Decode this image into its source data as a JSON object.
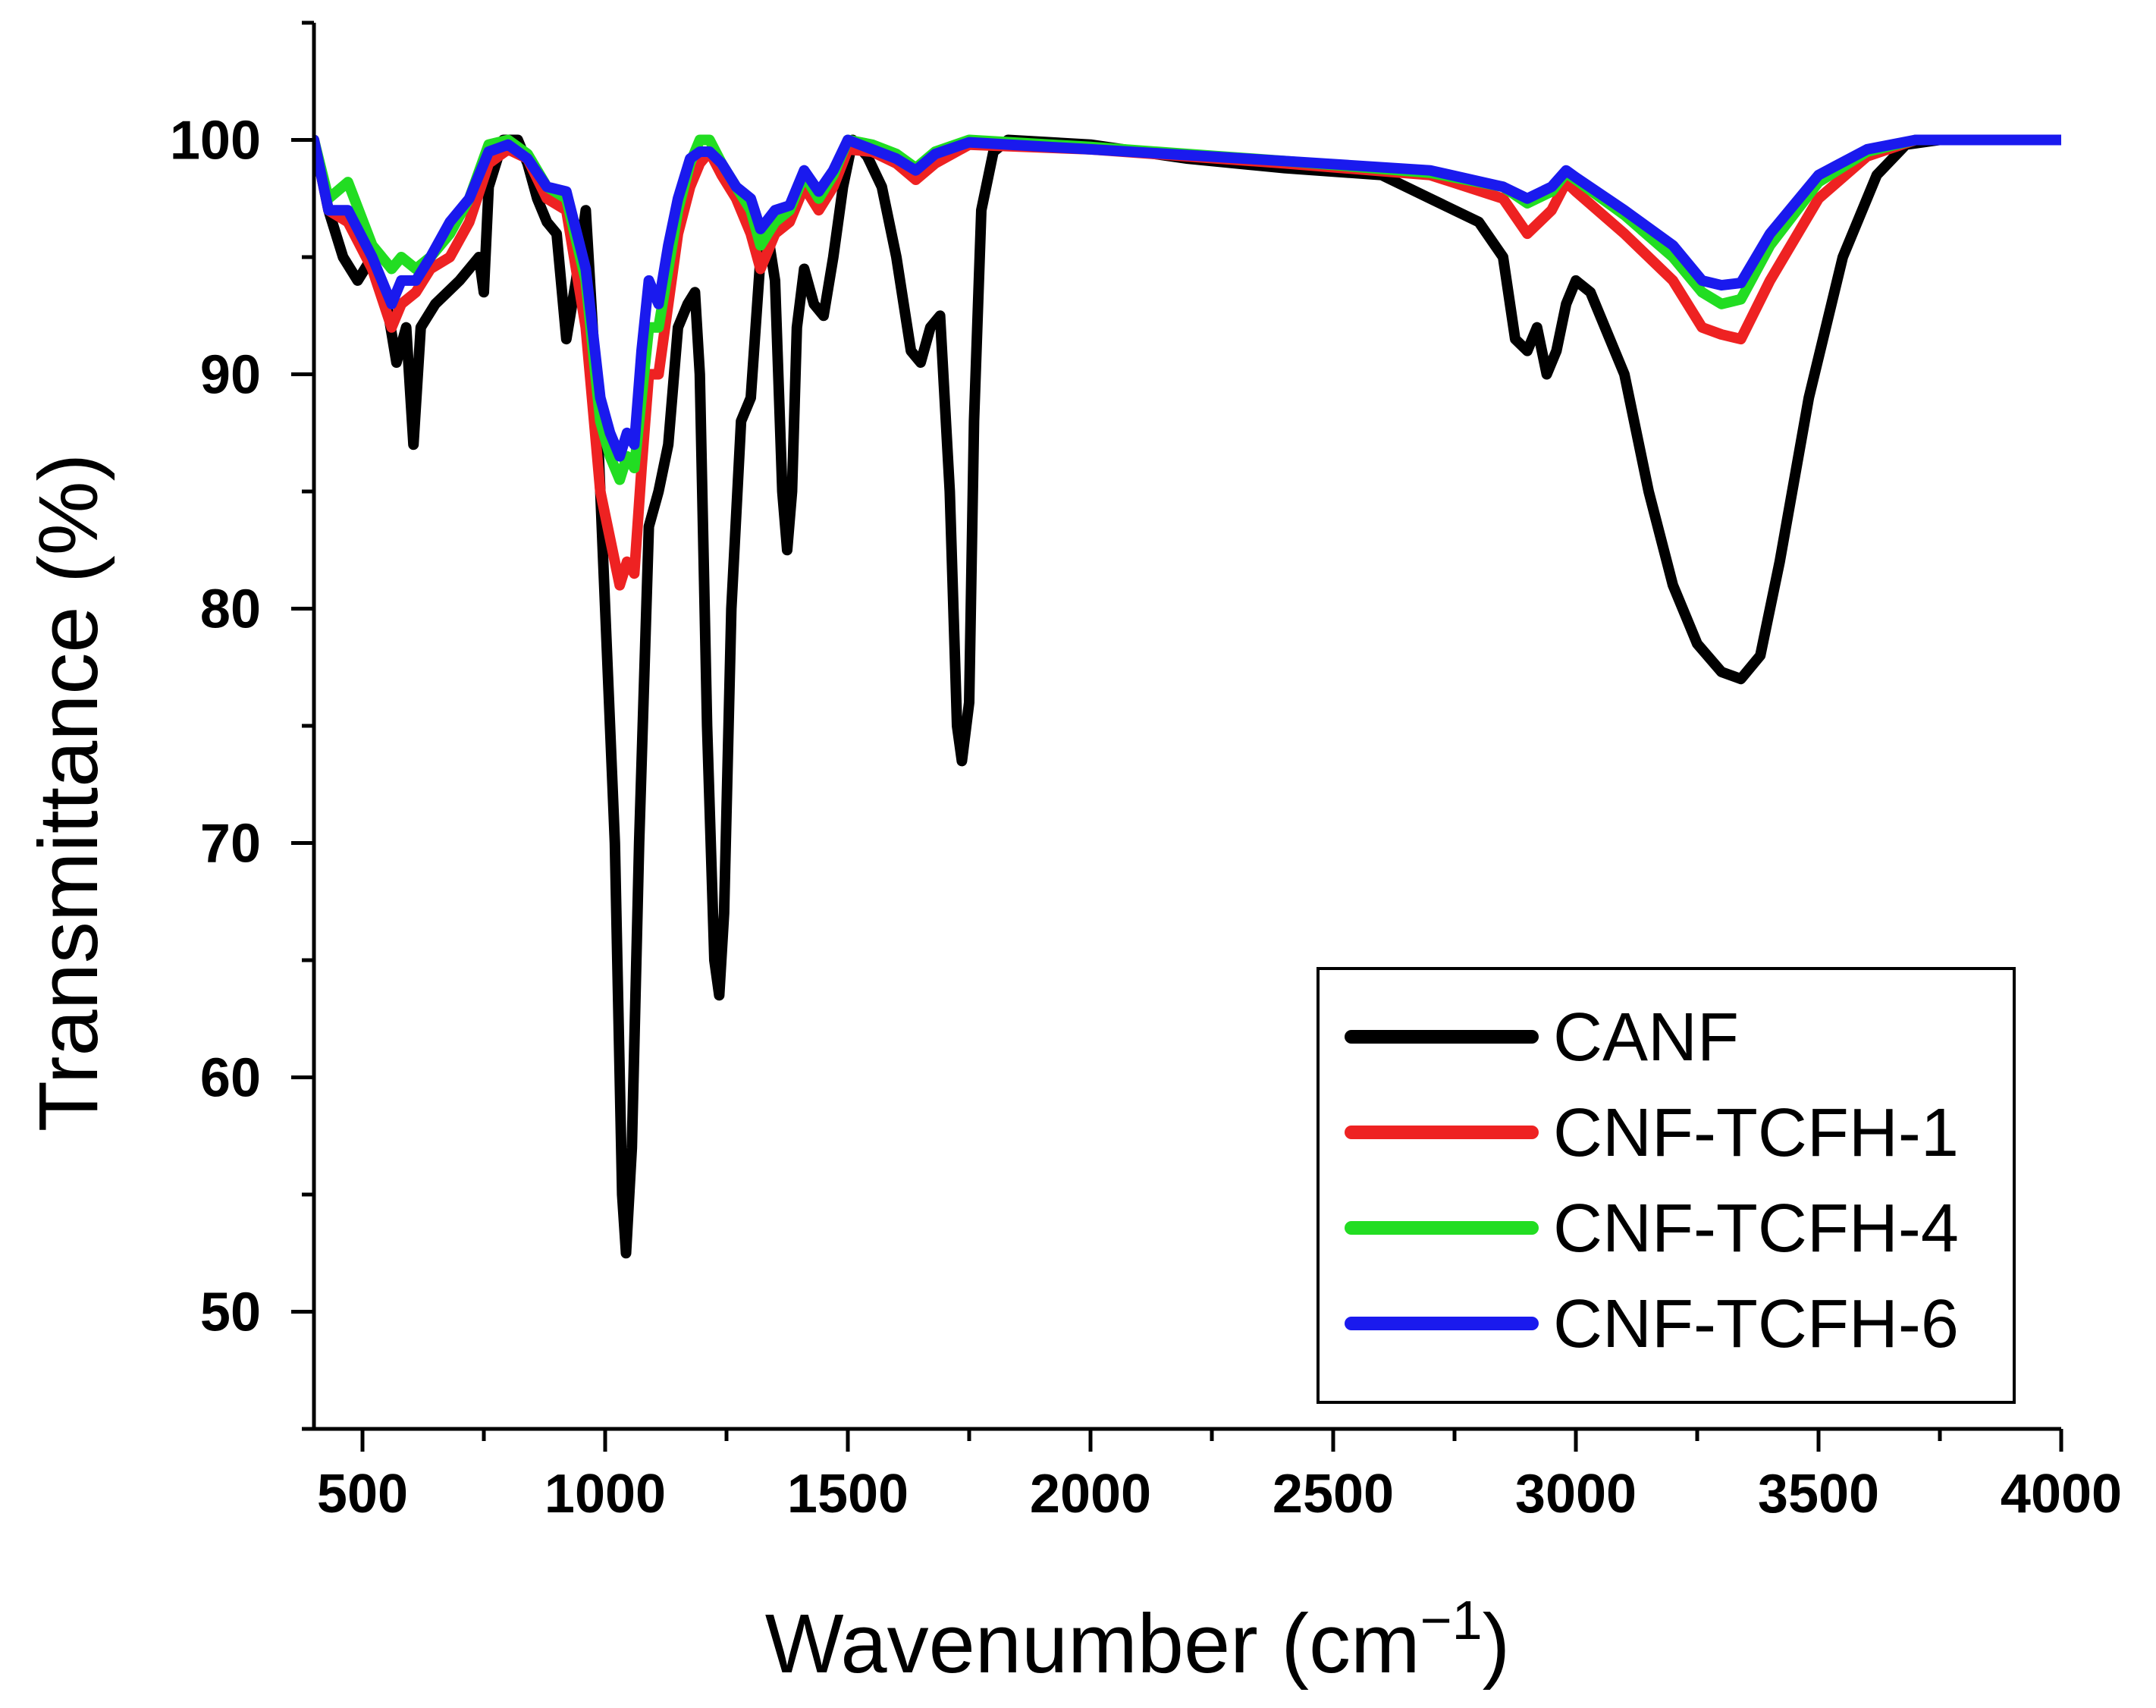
{
  "chart_data": {
    "type": "line",
    "xlabel_main": "Wavenumber (cm",
    "xlabel_sup": "−1",
    "xlabel_close": ")",
    "ylabel": "Transmittance (%)",
    "xlim": [
      400,
      4000
    ],
    "ylim": [
      45,
      105
    ],
    "xticks": [
      500,
      1000,
      1500,
      2000,
      2500,
      3000,
      3500,
      4000
    ],
    "yticks": [
      50,
      60,
      70,
      80,
      90,
      100
    ],
    "legend_position": "bottom-right",
    "series": [
      {
        "name": "CANF",
        "color": "#000000",
        "points": [
          [
            400,
            100
          ],
          [
            430,
            97
          ],
          [
            460,
            95
          ],
          [
            490,
            94
          ],
          [
            520,
            95
          ],
          [
            550,
            93
          ],
          [
            570,
            90.5
          ],
          [
            590,
            92
          ],
          [
            605,
            87
          ],
          [
            620,
            92
          ],
          [
            650,
            93
          ],
          [
            700,
            94
          ],
          [
            740,
            95
          ],
          [
            750,
            93.5
          ],
          [
            760,
            98
          ],
          [
            790,
            100
          ],
          [
            820,
            100
          ],
          [
            840,
            99
          ],
          [
            860,
            97.5
          ],
          [
            880,
            96.5
          ],
          [
            900,
            96
          ],
          [
            920,
            91.5
          ],
          [
            940,
            94
          ],
          [
            960,
            97
          ],
          [
            980,
            90
          ],
          [
            1000,
            80
          ],
          [
            1020,
            70
          ],
          [
            1035,
            55
          ],
          [
            1043,
            52.5
          ],
          [
            1055,
            57
          ],
          [
            1070,
            70
          ],
          [
            1090,
            83.5
          ],
          [
            1110,
            85
          ],
          [
            1130,
            87
          ],
          [
            1150,
            92
          ],
          [
            1170,
            93
          ],
          [
            1185,
            93.5
          ],
          [
            1195,
            90
          ],
          [
            1210,
            75
          ],
          [
            1225,
            65
          ],
          [
            1235,
            63.5
          ],
          [
            1245,
            67
          ],
          [
            1260,
            80
          ],
          [
            1280,
            88
          ],
          [
            1300,
            89
          ],
          [
            1320,
            95
          ],
          [
            1335,
            96
          ],
          [
            1350,
            94
          ],
          [
            1365,
            85
          ],
          [
            1375,
            82.5
          ],
          [
            1385,
            85
          ],
          [
            1395,
            92
          ],
          [
            1410,
            94.5
          ],
          [
            1430,
            93
          ],
          [
            1450,
            92.5
          ],
          [
            1470,
            95
          ],
          [
            1490,
            98
          ],
          [
            1510,
            100
          ],
          [
            1540,
            99.3
          ],
          [
            1570,
            98
          ],
          [
            1600,
            95
          ],
          [
            1630,
            91
          ],
          [
            1650,
            90.5
          ],
          [
            1670,
            92
          ],
          [
            1690,
            92.5
          ],
          [
            1710,
            85
          ],
          [
            1725,
            75
          ],
          [
            1735,
            73.5
          ],
          [
            1750,
            76
          ],
          [
            1760,
            88
          ],
          [
            1775,
            97
          ],
          [
            1800,
            99.5
          ],
          [
            1830,
            100
          ],
          [
            2000,
            99.8
          ],
          [
            2200,
            99.2
          ],
          [
            2400,
            98.8
          ],
          [
            2600,
            98.5
          ],
          [
            2700,
            97.5
          ],
          [
            2800,
            96.5
          ],
          [
            2850,
            95
          ],
          [
            2875,
            91.5
          ],
          [
            2900,
            91
          ],
          [
            2920,
            92
          ],
          [
            2940,
            90
          ],
          [
            2960,
            91
          ],
          [
            2980,
            93
          ],
          [
            3000,
            94
          ],
          [
            3030,
            93.5
          ],
          [
            3060,
            92
          ],
          [
            3100,
            90
          ],
          [
            3150,
            85
          ],
          [
            3200,
            81
          ],
          [
            3250,
            78.5
          ],
          [
            3300,
            77.3
          ],
          [
            3340,
            77
          ],
          [
            3380,
            78
          ],
          [
            3420,
            82
          ],
          [
            3480,
            89
          ],
          [
            3550,
            95
          ],
          [
            3620,
            98.5
          ],
          [
            3680,
            99.8
          ],
          [
            3750,
            100
          ],
          [
            4000,
            100
          ]
        ]
      },
      {
        "name": "CNF-TCFH-1",
        "color": "#ee2222",
        "points": [
          [
            400,
            100
          ],
          [
            430,
            97
          ],
          [
            470,
            96.5
          ],
          [
            520,
            94.5
          ],
          [
            560,
            92
          ],
          [
            580,
            93
          ],
          [
            610,
            93.5
          ],
          [
            640,
            94.5
          ],
          [
            680,
            95
          ],
          [
            720,
            96.5
          ],
          [
            760,
            99
          ],
          [
            800,
            99.6
          ],
          [
            840,
            99.2
          ],
          [
            880,
            97.5
          ],
          [
            920,
            97
          ],
          [
            960,
            92
          ],
          [
            990,
            85
          ],
          [
            1010,
            83
          ],
          [
            1030,
            81
          ],
          [
            1045,
            82
          ],
          [
            1060,
            81.5
          ],
          [
            1075,
            86
          ],
          [
            1090,
            90
          ],
          [
            1110,
            90
          ],
          [
            1130,
            93
          ],
          [
            1150,
            96
          ],
          [
            1175,
            98
          ],
          [
            1195,
            99
          ],
          [
            1215,
            99.5
          ],
          [
            1240,
            98.5
          ],
          [
            1270,
            97.5
          ],
          [
            1300,
            96
          ],
          [
            1320,
            94.5
          ],
          [
            1350,
            96
          ],
          [
            1380,
            96.5
          ],
          [
            1410,
            98
          ],
          [
            1440,
            97
          ],
          [
            1470,
            98
          ],
          [
            1500,
            99.6
          ],
          [
            1550,
            99.5
          ],
          [
            1600,
            99
          ],
          [
            1640,
            98.3
          ],
          [
            1680,
            99
          ],
          [
            1750,
            99.8
          ],
          [
            2000,
            99.6
          ],
          [
            2400,
            99
          ],
          [
            2700,
            98.5
          ],
          [
            2850,
            97.5
          ],
          [
            2900,
            96
          ],
          [
            2950,
            97
          ],
          [
            2980,
            98.2
          ],
          [
            3000,
            97.8
          ],
          [
            3100,
            96
          ],
          [
            3200,
            94
          ],
          [
            3260,
            92
          ],
          [
            3300,
            91.7
          ],
          [
            3340,
            91.5
          ],
          [
            3400,
            94
          ],
          [
            3500,
            97.5
          ],
          [
            3600,
            99.3
          ],
          [
            3700,
            100
          ],
          [
            4000,
            100
          ]
        ]
      },
      {
        "name": "CNF-TCFH-4",
        "color": "#22dd22",
        "points": [
          [
            400,
            100
          ],
          [
            430,
            97.5
          ],
          [
            470,
            98.2
          ],
          [
            520,
            95.5
          ],
          [
            560,
            94.5
          ],
          [
            580,
            95
          ],
          [
            610,
            94.5
          ],
          [
            640,
            95
          ],
          [
            680,
            96
          ],
          [
            720,
            97.5
          ],
          [
            760,
            99.8
          ],
          [
            800,
            100
          ],
          [
            840,
            99.4
          ],
          [
            880,
            98
          ],
          [
            920,
            97.5
          ],
          [
            960,
            94
          ],
          [
            990,
            88
          ],
          [
            1010,
            86.5
          ],
          [
            1030,
            85.5
          ],
          [
            1045,
            86.5
          ],
          [
            1060,
            86
          ],
          [
            1075,
            89
          ],
          [
            1090,
            92
          ],
          [
            1110,
            92
          ],
          [
            1130,
            94.5
          ],
          [
            1150,
            97
          ],
          [
            1175,
            99
          ],
          [
            1195,
            100
          ],
          [
            1215,
            100
          ],
          [
            1240,
            99
          ],
          [
            1270,
            98
          ],
          [
            1300,
            97
          ],
          [
            1320,
            95.5
          ],
          [
            1350,
            96.5
          ],
          [
            1380,
            97
          ],
          [
            1410,
            98.5
          ],
          [
            1440,
            97.5
          ],
          [
            1470,
            98.5
          ],
          [
            1500,
            100
          ],
          [
            1550,
            99.8
          ],
          [
            1600,
            99.4
          ],
          [
            1640,
            98.8
          ],
          [
            1680,
            99.5
          ],
          [
            1750,
            100
          ],
          [
            2000,
            99.7
          ],
          [
            2400,
            99.1
          ],
          [
            2700,
            98.6
          ],
          [
            2850,
            98
          ],
          [
            2900,
            97.3
          ],
          [
            2950,
            97.8
          ],
          [
            2980,
            98.6
          ],
          [
            3000,
            98.3
          ],
          [
            3100,
            96.8
          ],
          [
            3200,
            95
          ],
          [
            3260,
            93.5
          ],
          [
            3300,
            93
          ],
          [
            3340,
            93.2
          ],
          [
            3400,
            95.5
          ],
          [
            3500,
            98.2
          ],
          [
            3600,
            99.5
          ],
          [
            3700,
            100
          ],
          [
            4000,
            100
          ]
        ]
      },
      {
        "name": "CNF-TCFH-6",
        "color": "#1a1aee",
        "points": [
          [
            400,
            100
          ],
          [
            430,
            97
          ],
          [
            470,
            97
          ],
          [
            520,
            95
          ],
          [
            560,
            93
          ],
          [
            580,
            94
          ],
          [
            610,
            94
          ],
          [
            640,
            95
          ],
          [
            680,
            96.5
          ],
          [
            720,
            97.5
          ],
          [
            760,
            99.5
          ],
          [
            800,
            99.8
          ],
          [
            840,
            99.2
          ],
          [
            880,
            98
          ],
          [
            920,
            97.8
          ],
          [
            960,
            94.5
          ],
          [
            990,
            89
          ],
          [
            1010,
            87.5
          ],
          [
            1030,
            86.5
          ],
          [
            1045,
            87.5
          ],
          [
            1060,
            87
          ],
          [
            1075,
            91
          ],
          [
            1090,
            94
          ],
          [
            1110,
            93
          ],
          [
            1130,
            95.5
          ],
          [
            1150,
            97.5
          ],
          [
            1175,
            99.2
          ],
          [
            1195,
            99.5
          ],
          [
            1215,
            99.5
          ],
          [
            1240,
            99
          ],
          [
            1270,
            98
          ],
          [
            1300,
            97.5
          ],
          [
            1320,
            96.2
          ],
          [
            1350,
            97
          ],
          [
            1380,
            97.2
          ],
          [
            1410,
            98.7
          ],
          [
            1440,
            97.8
          ],
          [
            1470,
            98.7
          ],
          [
            1500,
            100
          ],
          [
            1550,
            99.6
          ],
          [
            1600,
            99.2
          ],
          [
            1640,
            98.7
          ],
          [
            1680,
            99.4
          ],
          [
            1750,
            99.9
          ],
          [
            2000,
            99.6
          ],
          [
            2400,
            99.1
          ],
          [
            2700,
            98.7
          ],
          [
            2850,
            98
          ],
          [
            2900,
            97.5
          ],
          [
            2950,
            98
          ],
          [
            2980,
            98.7
          ],
          [
            3000,
            98.4
          ],
          [
            3100,
            97
          ],
          [
            3200,
            95.5
          ],
          [
            3260,
            94
          ],
          [
            3300,
            93.8
          ],
          [
            3340,
            93.9
          ],
          [
            3400,
            96
          ],
          [
            3500,
            98.5
          ],
          [
            3600,
            99.6
          ],
          [
            3700,
            100
          ],
          [
            4000,
            100
          ]
        ]
      }
    ]
  }
}
